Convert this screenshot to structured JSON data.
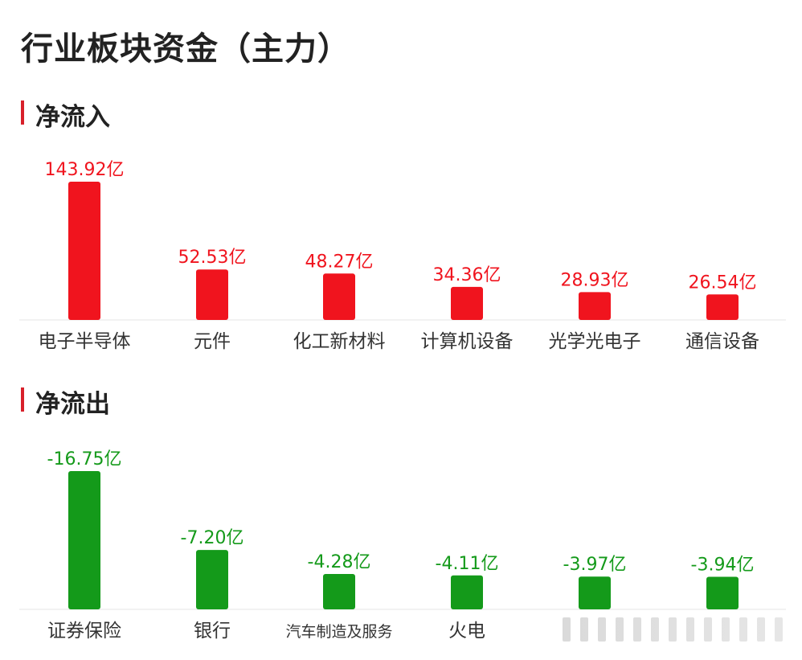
{
  "title": "行业板块资金（主力）",
  "sections": {
    "inflow_title": "净流入",
    "outflow_title": "净流出"
  },
  "colors": {
    "inflow": "#f0141e",
    "outflow": "#149a1a",
    "accent": "#d8202a"
  },
  "chart_data": [
    {
      "type": "bar",
      "title": "净流入",
      "categories": [
        "电子半导体",
        "元件",
        "化工新材料",
        "计算机设备",
        "光学光电子",
        "通信设备"
      ],
      "values": [
        143.92,
        52.53,
        48.27,
        34.36,
        28.93,
        26.54
      ],
      "labels": [
        "143.92亿",
        "52.53亿",
        "48.27亿",
        "34.36亿",
        "28.93亿",
        "26.54亿"
      ],
      "unit": "亿",
      "grid": false
    },
    {
      "type": "bar",
      "title": "净流出",
      "categories": [
        "证券保险",
        "银行",
        "汽车制造及服务",
        "火电",
        "",
        ""
      ],
      "values": [
        -16.75,
        -7.2,
        -4.28,
        -4.11,
        -3.97,
        -3.94
      ],
      "labels": [
        "-16.75亿",
        "-7.20亿",
        "-4.28亿",
        "-4.11亿",
        "-3.97亿",
        "-3.94亿"
      ],
      "unit": "亿",
      "grid": false
    }
  ]
}
